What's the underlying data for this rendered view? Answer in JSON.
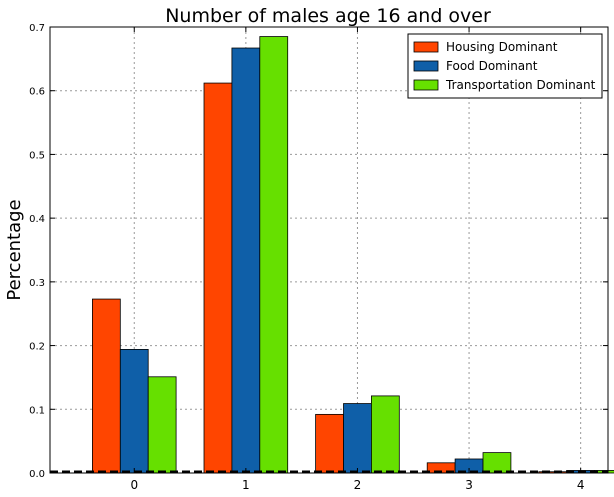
{
  "chart_data": {
    "type": "bar",
    "title": "Number of males age 16 and over",
    "xlabel": "",
    "ylabel": "Percentage",
    "categories": [
      "0",
      "1",
      "2",
      "3",
      "4"
    ],
    "series": [
      {
        "name": "Housing Dominant",
        "color": "#ff4500",
        "values": [
          0.273,
          0.612,
          0.092,
          0.016,
          0.002
        ]
      },
      {
        "name": "Food Dominant",
        "color": "#0f5fa8",
        "values": [
          0.194,
          0.667,
          0.109,
          0.022,
          0.004
        ]
      },
      {
        "name": "Transportation Dominant",
        "color": "#66e000",
        "values": [
          0.151,
          0.685,
          0.121,
          0.032,
          0.004
        ]
      }
    ],
    "ylim": [
      0,
      0.7
    ],
    "yticks": [
      "0.0",
      "0.1",
      "0.2",
      "0.3",
      "0.4",
      "0.5",
      "0.6",
      "0.7"
    ],
    "grid": true,
    "legend_position": "top-right"
  }
}
